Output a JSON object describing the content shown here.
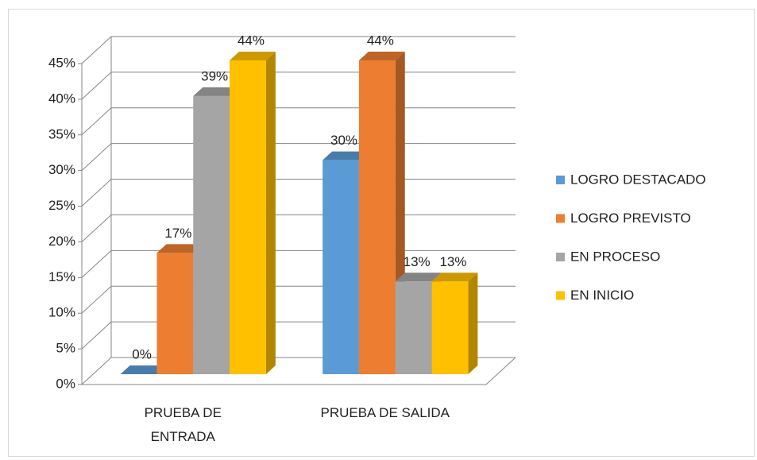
{
  "chart_data": {
    "type": "bar3d",
    "categories": [
      "PRUEBA DE\nENTRADA",
      "PRUEBA DE SALIDA"
    ],
    "series": [
      {
        "name": "LOGRO DESTACADO",
        "color": "#5b9bd5",
        "values": [
          0,
          30
        ],
        "value_labels": [
          "0%",
          "30%"
        ]
      },
      {
        "name": "LOGRO PREVISTO",
        "color": "#ed7d31",
        "values": [
          17,
          44
        ],
        "value_labels": [
          "17%",
          "44%"
        ]
      },
      {
        "name": "EN PROCESO",
        "color": "#a5a5a5",
        "values": [
          39,
          13
        ],
        "value_labels": [
          "39%",
          "13%"
        ]
      },
      {
        "name": "EN INICIO",
        "color": "#ffc000",
        "values": [
          44,
          13
        ],
        "value_labels": [
          "44%",
          "13%"
        ]
      }
    ],
    "ylim": [
      0,
      45
    ],
    "yticks": [
      {
        "value": 0,
        "label": "0%"
      },
      {
        "value": 5,
        "label": "5%"
      },
      {
        "value": 10,
        "label": "10%"
      },
      {
        "value": 15,
        "label": "15%"
      },
      {
        "value": 20,
        "label": "20%"
      },
      {
        "value": 25,
        "label": "25%"
      },
      {
        "value": 30,
        "label": "30%"
      },
      {
        "value": 35,
        "label": "35%"
      },
      {
        "value": 40,
        "label": "40%"
      },
      {
        "value": 45,
        "label": "45%"
      }
    ],
    "grid": true,
    "legend": "right"
  }
}
